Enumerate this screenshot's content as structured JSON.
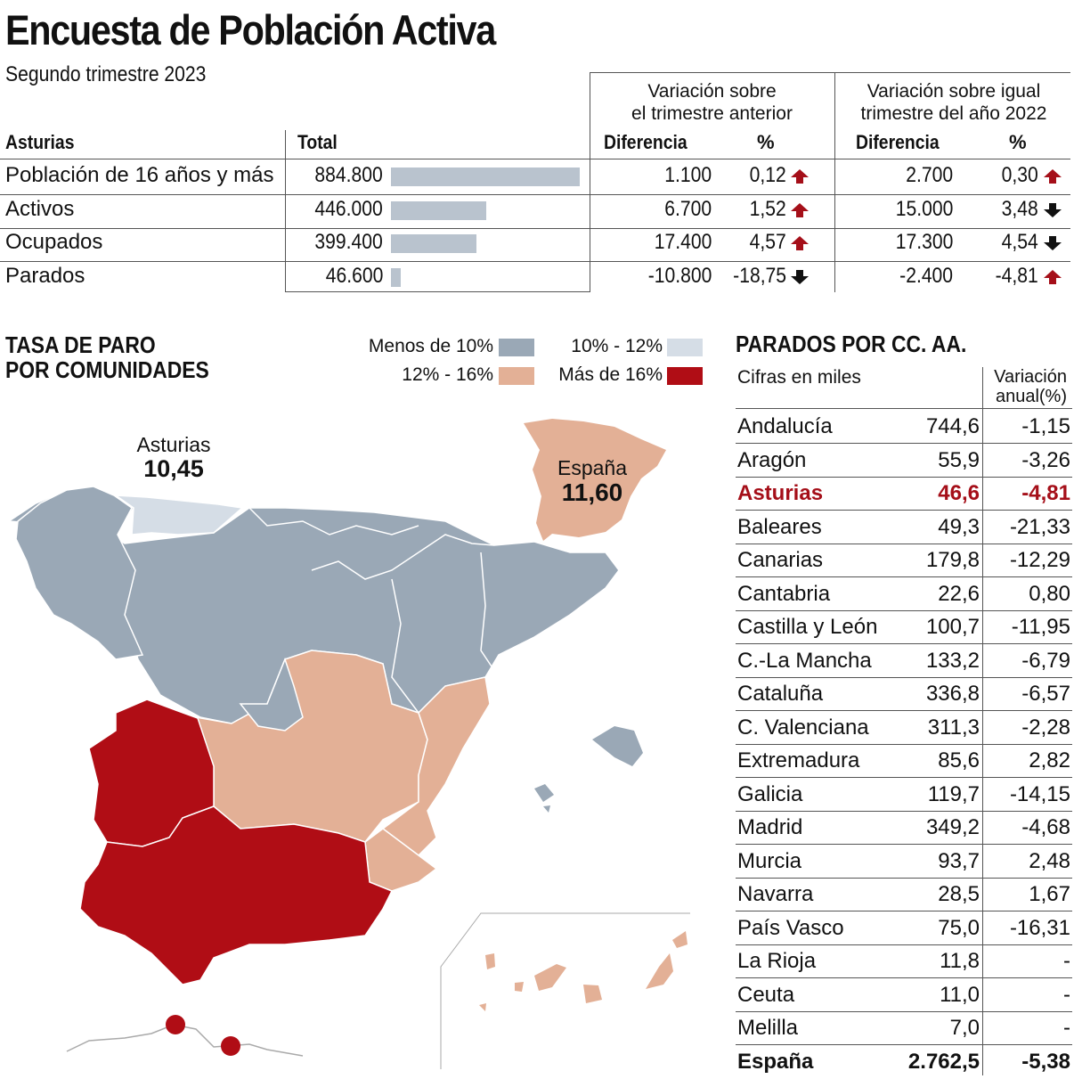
{
  "title": "Encuesta de Población Activa",
  "subtitle": "Segundo trimestre 2023",
  "colors": {
    "accent": "#a50f19",
    "bar": "#b9c3ce",
    "band_low": "#9aa8b6",
    "band_mid": "#d5dde6",
    "band_high": "#e3b096",
    "band_top": "#b00d15"
  },
  "top_table": {
    "region_header": "Asturias",
    "total_header": "Total",
    "group1": [
      "Variación sobre",
      "el trimestre anterior"
    ],
    "group2": [
      "Variación sobre igual",
      "trimestre del año 2022"
    ],
    "diff_header": "Diferencia",
    "pct_header": "%",
    "rows": [
      {
        "label": "Población de 16 años y más",
        "total": "884.800",
        "total_num": 884800,
        "d1": "1.100",
        "p1": "0,12",
        "a1": "up",
        "d2": "2.700",
        "p2": "0,30",
        "a2": "up"
      },
      {
        "label": "Activos",
        "total": "446.000",
        "total_num": 446000,
        "d1": "6.700",
        "p1": "1,52",
        "a1": "up",
        "d2": "15.000",
        "p2": "3,48",
        "a2": "down"
      },
      {
        "label": "Ocupados",
        "total": "399.400",
        "total_num": 399400,
        "d1": "17.400",
        "p1": "4,57",
        "a1": "up",
        "d2": "17.300",
        "p2": "4,54",
        "a2": "down"
      },
      {
        "label": "Parados",
        "total": "46.600",
        "total_num": 46600,
        "d1": "-10.800",
        "p1": "-18,75",
        "a1": "down",
        "d2": "-2.400",
        "p2": "-4,81",
        "a2": "up"
      }
    ]
  },
  "map": {
    "title_line1": "TASA DE PARO",
    "title_line2": "POR COMUNIDADES",
    "legend": {
      "low": "Menos de 10%",
      "mid": "10% - 12%",
      "high": "12% - 16%",
      "top": "Más de 16%"
    },
    "asturias_label": "Asturias",
    "asturias_value": "10,45",
    "spain_label": "España",
    "spain_value": "11,60"
  },
  "right_table": {
    "title": "PARADOS POR CC. AA.",
    "subtitle": "Cifras en miles",
    "var_header_1": "Variación",
    "var_header_2": "anual(%)",
    "rows": [
      {
        "name": "Andalucía",
        "value": "744,6",
        "var": "-1,15"
      },
      {
        "name": "Aragón",
        "value": "55,9",
        "var": "-3,26"
      },
      {
        "name": "Asturias",
        "value": "46,6",
        "var": "-4,81",
        "highlight": true
      },
      {
        "name": "Baleares",
        "value": "49,3",
        "var": "-21,33"
      },
      {
        "name": "Canarias",
        "value": "179,8",
        "var": "-12,29"
      },
      {
        "name": "Cantabria",
        "value": "22,6",
        "var": "0,80"
      },
      {
        "name": "Castilla y León",
        "value": "100,7",
        "var": "-11,95"
      },
      {
        "name": "C.-La Mancha",
        "value": "133,2",
        "var": "-6,79"
      },
      {
        "name": "Cataluña",
        "value": "336,8",
        "var": "-6,57"
      },
      {
        "name": "C. Valenciana",
        "value": "311,3",
        "var": "-2,28"
      },
      {
        "name": "Extremadura",
        "value": "85,6",
        "var": "2,82"
      },
      {
        "name": "Galicia",
        "value": "119,7",
        "var": "-14,15"
      },
      {
        "name": "Madrid",
        "value": "349,2",
        "var": "-4,68"
      },
      {
        "name": "Murcia",
        "value": "93,7",
        "var": "2,48"
      },
      {
        "name": "Navarra",
        "value": "28,5",
        "var": "1,67"
      },
      {
        "name": "País Vasco",
        "value": "75,0",
        "var": "-16,31"
      },
      {
        "name": "La Rioja",
        "value": "11,8",
        "var": "-"
      },
      {
        "name": "Ceuta",
        "value": "11,0",
        "var": "-"
      },
      {
        "name": "Melilla",
        "value": "7,0",
        "var": "-"
      },
      {
        "name": "España",
        "value": "2.762,5",
        "var": "-5,38",
        "total": true
      }
    ]
  },
  "chart_data": {
    "type": "bar",
    "title": "Encuesta de Población Activa - Asturias",
    "categories": [
      "Población de 16 años y más",
      "Activos",
      "Ocupados",
      "Parados"
    ],
    "values": [
      884800,
      446000,
      399400,
      46600
    ],
    "xlabel": "",
    "ylabel": "Total",
    "ylim": [
      0,
      884800
    ]
  }
}
